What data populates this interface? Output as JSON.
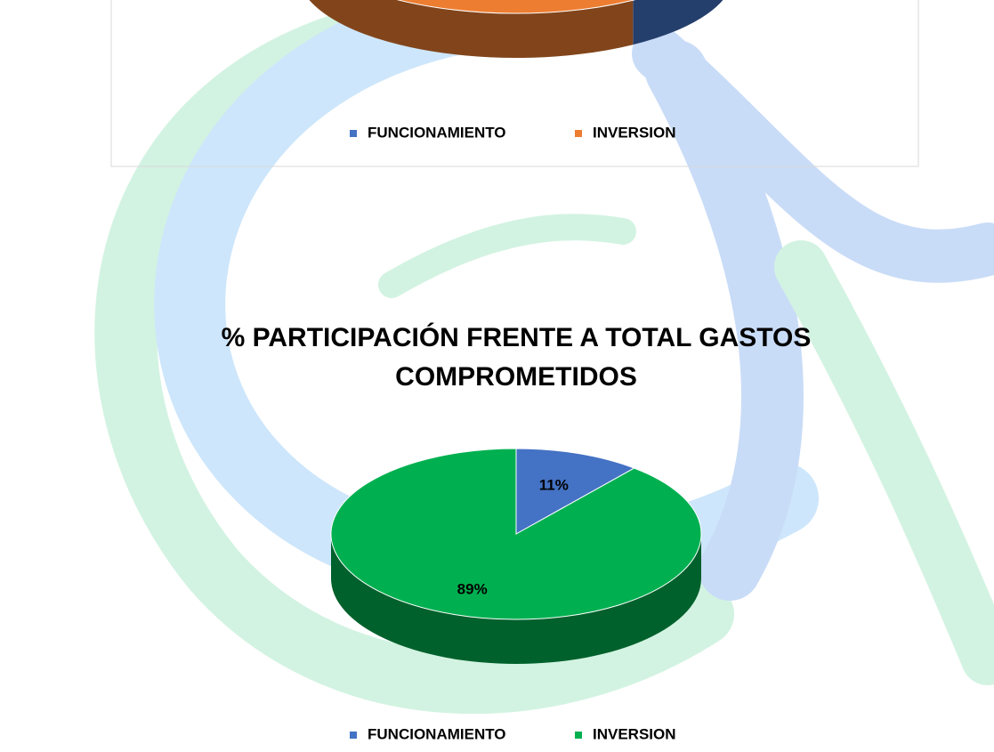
{
  "chart_data": [
    {
      "type": "pie",
      "categories": [
        "FUNCIONAMIENTO",
        "INVERSION"
      ],
      "values": [
        41,
        59
      ],
      "colors": [
        "#4472c4",
        "#ed7d31"
      ]
    },
    {
      "type": "pie",
      "title": "% PARTICIPACIÓN FRENTE A TOTAL GASTOS COMPROMETIDOS",
      "categories": [
        "FUNCIONAMIENTO",
        "INVERSION"
      ],
      "values": [
        11,
        89
      ],
      "value_labels": [
        "11%",
        "89%"
      ],
      "colors": [
        "#4472c4",
        "#00b050"
      ]
    }
  ]
}
